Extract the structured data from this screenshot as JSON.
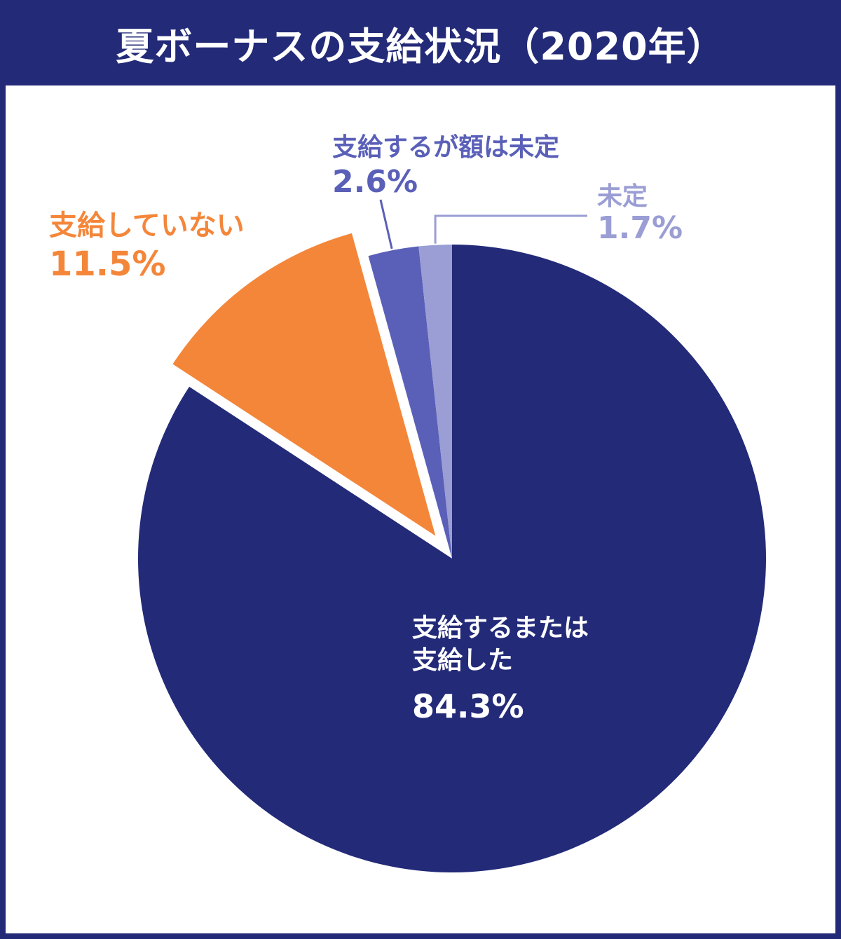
{
  "title": "夏ボーナスの支給状況（2020年）",
  "colors": {
    "background": "#232a78",
    "panel": "#ffffff",
    "slice_paid": "#232a78",
    "slice_not_paid": "#f4863a",
    "slice_amount_undecided": "#5a60b8",
    "slice_undecided": "#9a9ed4"
  },
  "chart_data": {
    "type": "pie",
    "title": "夏ボーナスの支給状況（2020年）",
    "slices": [
      {
        "label": "支給するまたは支給した",
        "label_lines": [
          "支給するまたは",
          "支給した"
        ],
        "value": 84.3,
        "display": "84.3%",
        "color": "#232a78"
      },
      {
        "label": "支給していない",
        "label_lines": [
          "支給していない"
        ],
        "value": 11.5,
        "display": "11.5%",
        "color": "#f4863a",
        "exploded": true
      },
      {
        "label": "支給するが額は未定",
        "label_lines": [
          "支給するが額は未定"
        ],
        "value": 2.6,
        "display": "2.6%",
        "color": "#5a60b8"
      },
      {
        "label": "未定",
        "label_lines": [
          "未定"
        ],
        "value": 1.7,
        "display": "1.7%",
        "color": "#9a9ed4"
      }
    ],
    "start": "12 o'clock",
    "direction": "clockwise"
  }
}
